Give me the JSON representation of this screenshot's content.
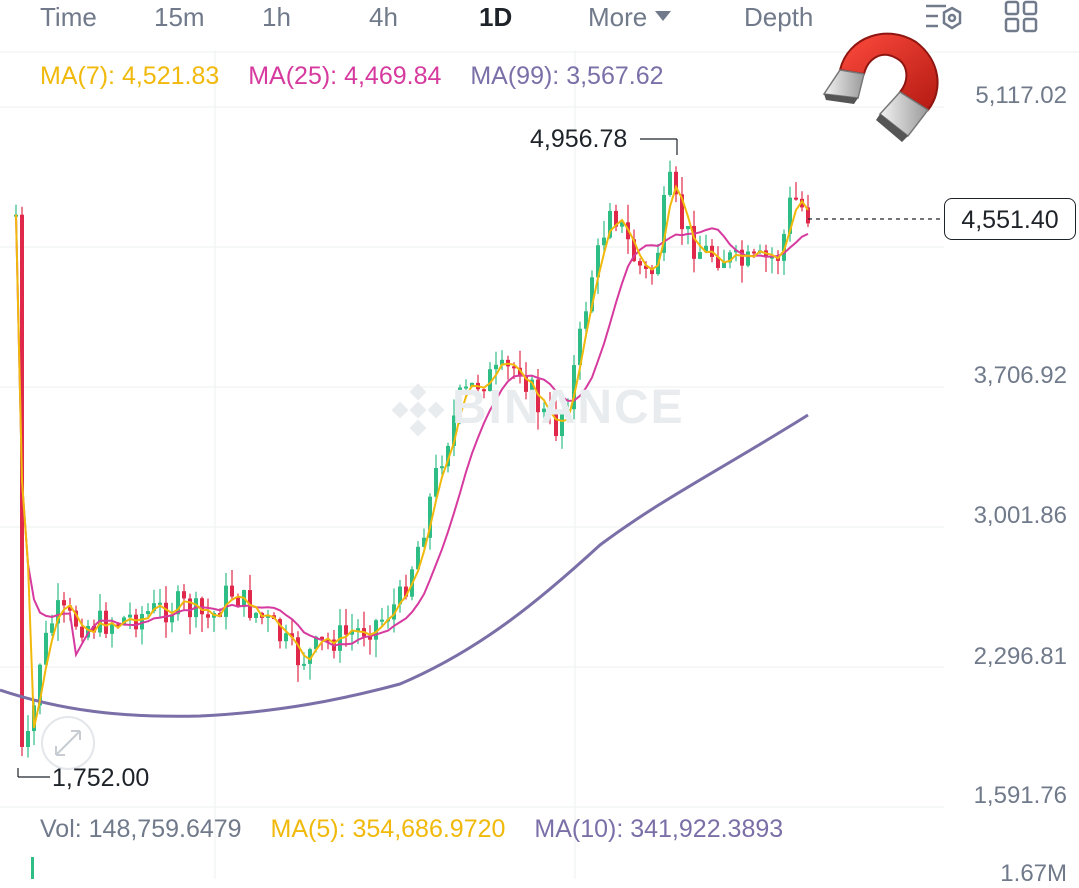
{
  "tabs": {
    "time": "Time",
    "m15": "15m",
    "h1": "1h",
    "h4": "4h",
    "d1": "1D",
    "more": "More",
    "depth": "Depth"
  },
  "ma_legend": {
    "ma7": "MA(7): 4,521.83",
    "ma25": "MA(25): 4,469.84",
    "ma99": "MA(99): 3,567.62"
  },
  "price_axis": [
    "5,117.02",
    "3,706.92",
    "3,001.86",
    "2,296.81",
    "1,591.76"
  ],
  "current_price": "4,551.40",
  "high_marker": "4,956.78",
  "low_marker": "1,752.00",
  "volume_legend": {
    "vol": "Vol: 148,759.6479",
    "ma5": "MA(5): 354,686.9720",
    "ma10": "MA(10): 341,922.3893"
  },
  "volume_axis": "1.67M",
  "watermark": "BINANCE",
  "colors": {
    "up": "#2ebd85",
    "down": "#e0294a",
    "ma7": "#f0b90b",
    "ma25": "#d63a9e",
    "ma99": "#7b6fa8",
    "text_muted": "#707a8a",
    "grid": "#eef0f2"
  },
  "icons": {
    "settings": "chart-settings-icon",
    "layout": "grid-layout-icon",
    "magnet": "magnet-icon",
    "expand": "expand-icon"
  }
}
